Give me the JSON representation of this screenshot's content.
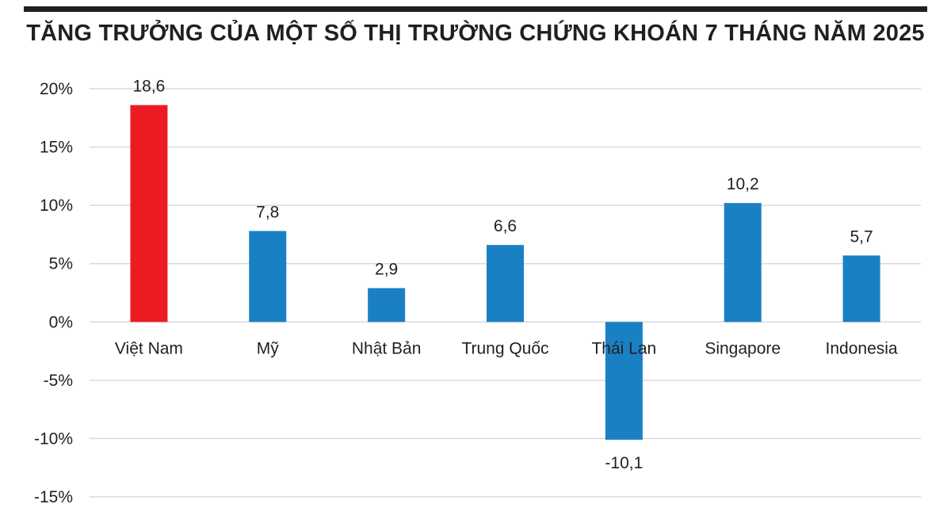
{
  "chart_data": {
    "type": "bar",
    "title": "TĂNG TRƯỞNG CỦA MỘT SỐ THỊ TRƯỜNG CHỨNG KHOÁN 7 THÁNG NĂM 2025",
    "categories": [
      "Việt Nam",
      "Mỹ",
      "Nhật Bản",
      "Trung Quốc",
      "Thái Lan",
      "Singapore",
      "Indonesia"
    ],
    "values": [
      18.6,
      7.8,
      2.9,
      6.6,
      -10.1,
      10.2,
      5.7
    ],
    "data_labels": [
      "18,6",
      "7,8",
      "2,9",
      "6,6",
      "-10,1",
      "10,2",
      "5,7"
    ],
    "ylim": [
      -15,
      20
    ],
    "yticks": [
      20,
      15,
      10,
      5,
      0,
      -5,
      -10,
      -15
    ],
    "ytick_labels": [
      "20%",
      "15%",
      "10%",
      "5%",
      "0%",
      "-5%",
      "-10%",
      "-15%"
    ],
    "xlabel": "",
    "ylabel": "",
    "grid": true,
    "colors": {
      "highlight": "#ed1c24",
      "default": "#1a80c4",
      "grid": "#d9d9d9",
      "text": "#231f20"
    },
    "highlight_index": 0
  }
}
